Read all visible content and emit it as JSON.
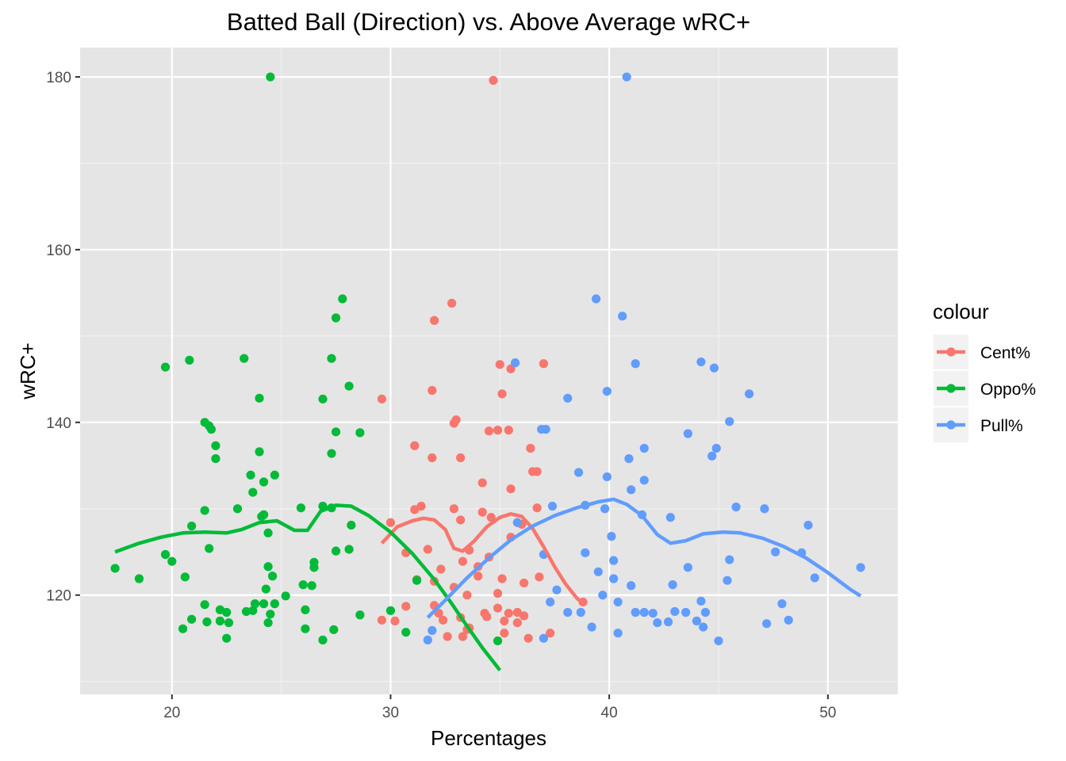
{
  "chart_data": {
    "type": "scatter",
    "title": "Batted Ball (Direction) vs. Above Average wRC+",
    "xlabel": "Percentages",
    "ylabel": "wRC+",
    "xlim": [
      15.8,
      53.2
    ],
    "ylim": [
      108.5,
      183.4
    ],
    "x_ticks": [
      20,
      30,
      40,
      50
    ],
    "y_ticks": [
      120,
      140,
      160,
      180
    ],
    "grid": true,
    "background": "#e5e5e5",
    "legend": {
      "title": "colour",
      "position": "right"
    },
    "series": [
      {
        "name": "Cent%",
        "color": "#f8766d",
        "points": [
          [
            34.7,
            179.6
          ],
          [
            33.5,
            120.0
          ],
          [
            32.8,
            153.8
          ],
          [
            32.0,
            151.8
          ],
          [
            37.0,
            146.8
          ],
          [
            35.0,
            146.7
          ],
          [
            35.5,
            146.2
          ],
          [
            35.1,
            143.3
          ],
          [
            31.9,
            143.7
          ],
          [
            29.6,
            142.7
          ],
          [
            32.9,
            139.9
          ],
          [
            33.0,
            140.3
          ],
          [
            34.5,
            139.0
          ],
          [
            34.9,
            139.1
          ],
          [
            35.4,
            139.1
          ],
          [
            31.1,
            137.3
          ],
          [
            36.4,
            137.0
          ],
          [
            31.9,
            135.9
          ],
          [
            33.2,
            135.9
          ],
          [
            36.5,
            134.3
          ],
          [
            36.7,
            134.3
          ],
          [
            34.2,
            133.0
          ],
          [
            35.5,
            132.3
          ],
          [
            31.4,
            130.3
          ],
          [
            31.1,
            129.9
          ],
          [
            32.9,
            130.0
          ],
          [
            34.2,
            129.6
          ],
          [
            36.7,
            130.1
          ],
          [
            33.2,
            128.7
          ],
          [
            34.6,
            129.0
          ],
          [
            35.8,
            128.4
          ],
          [
            30.0,
            128.4
          ],
          [
            36.0,
            128.2
          ],
          [
            31.7,
            125.3
          ],
          [
            33.6,
            125.2
          ],
          [
            30.7,
            124.9
          ],
          [
            35.5,
            126.7
          ],
          [
            34.5,
            124.4
          ],
          [
            33.3,
            123.9
          ],
          [
            34.0,
            123.3
          ],
          [
            32.3,
            123.0
          ],
          [
            31.2,
            121.8
          ],
          [
            32.0,
            121.6
          ],
          [
            34.0,
            122.2
          ],
          [
            35.1,
            121.9
          ],
          [
            36.8,
            122.1
          ],
          [
            36.1,
            121.4
          ],
          [
            32.9,
            120.9
          ],
          [
            34.9,
            120.2
          ],
          [
            30.7,
            118.7
          ],
          [
            32.0,
            118.8
          ],
          [
            32.2,
            117.9
          ],
          [
            35.4,
            117.9
          ],
          [
            35.8,
            118.0
          ],
          [
            33.2,
            117.4
          ],
          [
            34.4,
            117.5
          ],
          [
            34.9,
            118.5
          ],
          [
            36.1,
            117.6
          ],
          [
            32.4,
            117.1
          ],
          [
            29.6,
            117.1
          ],
          [
            30.2,
            117.0
          ],
          [
            33.5,
            116.0
          ],
          [
            35.2,
            117.0
          ],
          [
            35.8,
            116.8
          ],
          [
            38.8,
            119.2
          ],
          [
            37.3,
            115.6
          ],
          [
            35.2,
            115.6
          ],
          [
            32.6,
            115.2
          ],
          [
            33.3,
            115.2
          ],
          [
            36.3,
            115.0
          ],
          [
            34.3,
            117.9
          ],
          [
            33.6,
            116.2
          ]
        ],
        "smooth": [
          [
            29.6,
            126.0
          ],
          [
            30.3,
            127.9
          ],
          [
            31.0,
            128.6
          ],
          [
            31.5,
            128.9
          ],
          [
            32.0,
            128.7
          ],
          [
            32.5,
            127.6
          ],
          [
            32.9,
            125.4
          ],
          [
            33.3,
            125.1
          ],
          [
            33.8,
            126.2
          ],
          [
            34.4,
            127.9
          ],
          [
            35.0,
            129.0
          ],
          [
            35.5,
            129.4
          ],
          [
            36.0,
            129.1
          ],
          [
            36.5,
            127.7
          ],
          [
            37.0,
            125.6
          ],
          [
            37.5,
            123.3
          ],
          [
            38.0,
            121.3
          ],
          [
            38.5,
            119.7
          ],
          [
            38.8,
            119.0
          ]
        ]
      },
      {
        "name": "Oppo%",
        "color": "#00ba38",
        "points": [
          [
            24.5,
            180.0
          ],
          [
            27.8,
            154.3
          ],
          [
            27.5,
            152.1
          ],
          [
            19.7,
            146.4
          ],
          [
            20.8,
            147.2
          ],
          [
            23.3,
            147.4
          ],
          [
            27.3,
            147.4
          ],
          [
            28.1,
            144.2
          ],
          [
            24.0,
            142.8
          ],
          [
            26.9,
            142.7
          ],
          [
            21.5,
            140.0
          ],
          [
            21.7,
            139.6
          ],
          [
            21.8,
            139.2
          ],
          [
            27.5,
            138.9
          ],
          [
            28.6,
            138.8
          ],
          [
            22.0,
            137.3
          ],
          [
            24.0,
            136.6
          ],
          [
            27.3,
            136.4
          ],
          [
            22.0,
            135.8
          ],
          [
            23.6,
            133.9
          ],
          [
            24.7,
            133.9
          ],
          [
            24.2,
            133.1
          ],
          [
            23.7,
            131.9
          ],
          [
            21.5,
            129.8
          ],
          [
            23.0,
            130.0
          ],
          [
            25.9,
            130.1
          ],
          [
            26.9,
            130.3
          ],
          [
            27.3,
            130.1
          ],
          [
            24.1,
            129.1
          ],
          [
            24.2,
            129.3
          ],
          [
            20.9,
            128.0
          ],
          [
            28.2,
            128.1
          ],
          [
            24.4,
            127.2
          ],
          [
            21.7,
            125.4
          ],
          [
            27.5,
            125.1
          ],
          [
            28.1,
            125.3
          ],
          [
            19.7,
            124.7
          ],
          [
            20.0,
            123.9
          ],
          [
            26.5,
            123.8
          ],
          [
            26.5,
            123.2
          ],
          [
            24.4,
            123.3
          ],
          [
            17.4,
            123.1
          ],
          [
            18.5,
            121.9
          ],
          [
            20.6,
            122.1
          ],
          [
            24.6,
            122.2
          ],
          [
            24.3,
            120.7
          ],
          [
            26.0,
            121.2
          ],
          [
            26.4,
            121.1
          ],
          [
            25.2,
            119.9
          ],
          [
            21.5,
            118.9
          ],
          [
            23.8,
            119.0
          ],
          [
            24.2,
            119.0
          ],
          [
            24.7,
            119.0
          ],
          [
            22.2,
            118.3
          ],
          [
            23.4,
            118.1
          ],
          [
            23.7,
            118.2
          ],
          [
            22.5,
            118.0
          ],
          [
            26.1,
            118.3
          ],
          [
            28.6,
            117.7
          ],
          [
            24.5,
            117.8
          ],
          [
            30.0,
            118.2
          ],
          [
            20.9,
            117.2
          ],
          [
            21.6,
            116.9
          ],
          [
            22.2,
            117.0
          ],
          [
            22.6,
            116.8
          ],
          [
            24.4,
            116.8
          ],
          [
            20.5,
            116.1
          ],
          [
            26.1,
            116.1
          ],
          [
            27.4,
            116.0
          ],
          [
            30.7,
            115.7
          ],
          [
            22.5,
            115.0
          ],
          [
            26.9,
            114.8
          ],
          [
            34.9,
            114.7
          ],
          [
            31.2,
            121.7
          ]
        ],
        "smooth": [
          [
            17.4,
            125.0
          ],
          [
            18.5,
            126.0
          ],
          [
            19.5,
            126.7
          ],
          [
            20.5,
            127.2
          ],
          [
            21.5,
            127.3
          ],
          [
            22.5,
            127.2
          ],
          [
            23.2,
            127.6
          ],
          [
            24.0,
            128.4
          ],
          [
            24.8,
            128.6
          ],
          [
            25.6,
            127.5
          ],
          [
            26.2,
            127.5
          ],
          [
            26.8,
            129.7
          ],
          [
            27.5,
            130.4
          ],
          [
            28.2,
            130.3
          ],
          [
            29.0,
            129.2
          ],
          [
            30.0,
            127.3
          ],
          [
            31.0,
            124.8
          ],
          [
            32.0,
            121.8
          ],
          [
            32.8,
            119.0
          ],
          [
            33.5,
            116.4
          ],
          [
            34.2,
            113.9
          ],
          [
            35.0,
            111.3
          ]
        ]
      },
      {
        "name": "Pull%",
        "color": "#619cff",
        "points": [
          [
            40.8,
            180.0
          ],
          [
            39.4,
            154.3
          ],
          [
            40.6,
            152.3
          ],
          [
            35.7,
            146.9
          ],
          [
            41.2,
            146.8
          ],
          [
            44.2,
            147.0
          ],
          [
            44.8,
            146.3
          ],
          [
            46.4,
            143.3
          ],
          [
            38.1,
            142.8
          ],
          [
            39.9,
            143.6
          ],
          [
            45.5,
            140.1
          ],
          [
            36.9,
            139.2
          ],
          [
            37.1,
            139.2
          ],
          [
            43.6,
            138.7
          ],
          [
            44.9,
            137.0
          ],
          [
            41.6,
            137.0
          ],
          [
            44.7,
            136.1
          ],
          [
            40.9,
            135.8
          ],
          [
            38.6,
            134.2
          ],
          [
            39.9,
            133.7
          ],
          [
            41.6,
            133.3
          ],
          [
            41.0,
            132.2
          ],
          [
            37.4,
            130.3
          ],
          [
            38.9,
            130.4
          ],
          [
            39.8,
            130.0
          ],
          [
            45.8,
            130.2
          ],
          [
            47.1,
            130.0
          ],
          [
            41.5,
            129.3
          ],
          [
            42.8,
            129.0
          ],
          [
            35.8,
            128.4
          ],
          [
            49.1,
            128.1
          ],
          [
            40.1,
            126.8
          ],
          [
            37.0,
            124.7
          ],
          [
            38.9,
            124.9
          ],
          [
            47.6,
            125.0
          ],
          [
            48.8,
            124.9
          ],
          [
            40.2,
            124.0
          ],
          [
            45.5,
            124.1
          ],
          [
            51.5,
            123.2
          ],
          [
            43.6,
            123.2
          ],
          [
            39.5,
            122.7
          ],
          [
            40.2,
            121.9
          ],
          [
            41.0,
            121.1
          ],
          [
            42.9,
            121.2
          ],
          [
            45.4,
            121.7
          ],
          [
            49.4,
            122.0
          ],
          [
            37.6,
            120.6
          ],
          [
            39.7,
            120.0
          ],
          [
            37.3,
            119.2
          ],
          [
            40.4,
            119.2
          ],
          [
            44.2,
            119.3
          ],
          [
            47.9,
            119.0
          ],
          [
            38.1,
            118.0
          ],
          [
            38.7,
            118.0
          ],
          [
            41.2,
            118.0
          ],
          [
            41.6,
            118.0
          ],
          [
            42.0,
            117.9
          ],
          [
            43.0,
            118.1
          ],
          [
            43.5,
            118.0
          ],
          [
            44.4,
            118.0
          ],
          [
            42.2,
            116.8
          ],
          [
            42.7,
            116.9
          ],
          [
            44.0,
            117.0
          ],
          [
            47.2,
            116.7
          ],
          [
            48.2,
            117.1
          ],
          [
            39.2,
            116.3
          ],
          [
            44.3,
            116.3
          ],
          [
            31.9,
            115.9
          ],
          [
            40.4,
            115.6
          ],
          [
            37.0,
            115.0
          ],
          [
            31.7,
            114.8
          ],
          [
            45.0,
            114.7
          ]
        ],
        "smooth": [
          [
            31.7,
            117.4
          ],
          [
            32.5,
            119.4
          ],
          [
            33.5,
            122.0
          ],
          [
            34.5,
            124.3
          ],
          [
            35.5,
            126.4
          ],
          [
            36.5,
            128.0
          ],
          [
            37.5,
            129.2
          ],
          [
            38.5,
            130.1
          ],
          [
            39.5,
            130.8
          ],
          [
            40.2,
            131.1
          ],
          [
            40.8,
            130.5
          ],
          [
            41.5,
            129.2
          ],
          [
            42.2,
            127.0
          ],
          [
            42.8,
            126.0
          ],
          [
            43.5,
            126.3
          ],
          [
            44.3,
            127.1
          ],
          [
            45.2,
            127.3
          ],
          [
            46.0,
            127.2
          ],
          [
            47.0,
            126.6
          ],
          [
            48.0,
            125.6
          ],
          [
            49.0,
            124.3
          ],
          [
            50.0,
            122.6
          ],
          [
            51.0,
            120.7
          ],
          [
            51.5,
            119.9
          ]
        ]
      }
    ]
  }
}
